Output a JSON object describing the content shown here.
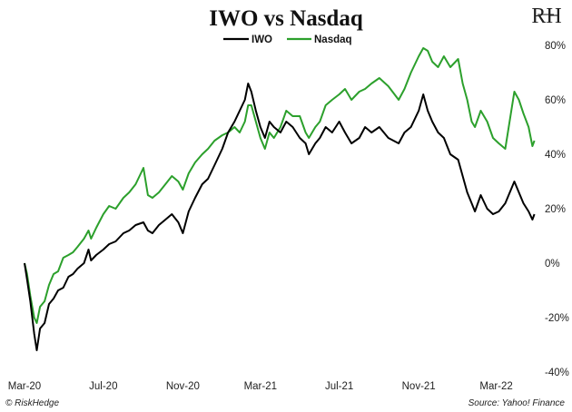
{
  "chart_data": {
    "type": "line",
    "title": "IWO vs Nasdaq",
    "y_axis_side": "right",
    "ylim": [
      -40,
      80
    ],
    "yticks": [
      80,
      60,
      40,
      20,
      0,
      -20,
      -40
    ],
    "ytick_labels": [
      "80%",
      "60%",
      "40%",
      "20%",
      "0%",
      "-20%",
      "-40%"
    ],
    "xlim": [
      "2020-03-01",
      "2022-05-01"
    ],
    "xticks": [
      "2020-03-01",
      "2020-07-01",
      "2020-11-01",
      "2021-03-01",
      "2021-07-01",
      "2021-11-01",
      "2022-03-01"
    ],
    "xtick_labels": [
      "Mar-20",
      "Jul-20",
      "Nov-20",
      "Mar-21",
      "Jul-21",
      "Nov-21",
      "Mar-22"
    ],
    "grid": false,
    "legend_position": "top-center",
    "series": [
      {
        "name": "IWO",
        "color": "#000000",
        "points": [
          [
            "2020-03-01",
            0
          ],
          [
            "2020-03-05",
            -6
          ],
          [
            "2020-03-10",
            -14
          ],
          [
            "2020-03-16",
            -26
          ],
          [
            "2020-03-20",
            -32
          ],
          [
            "2020-03-25",
            -24
          ],
          [
            "2020-04-01",
            -22
          ],
          [
            "2020-04-08",
            -15
          ],
          [
            "2020-04-15",
            -13
          ],
          [
            "2020-04-22",
            -10
          ],
          [
            "2020-04-30",
            -9
          ],
          [
            "2020-05-08",
            -5
          ],
          [
            "2020-05-15",
            -4
          ],
          [
            "2020-05-22",
            -2
          ],
          [
            "2020-06-01",
            0
          ],
          [
            "2020-06-08",
            5
          ],
          [
            "2020-06-12",
            1
          ],
          [
            "2020-06-20",
            3
          ],
          [
            "2020-07-01",
            5
          ],
          [
            "2020-07-10",
            7
          ],
          [
            "2020-07-20",
            8
          ],
          [
            "2020-08-01",
            11
          ],
          [
            "2020-08-10",
            12
          ],
          [
            "2020-08-20",
            14
          ],
          [
            "2020-09-01",
            15
          ],
          [
            "2020-09-08",
            12
          ],
          [
            "2020-09-15",
            11
          ],
          [
            "2020-09-25",
            14
          ],
          [
            "2020-10-05",
            16
          ],
          [
            "2020-10-15",
            18
          ],
          [
            "2020-10-25",
            15
          ],
          [
            "2020-11-01",
            11
          ],
          [
            "2020-11-10",
            19
          ],
          [
            "2020-11-20",
            24
          ],
          [
            "2020-12-01",
            29
          ],
          [
            "2020-12-10",
            31
          ],
          [
            "2020-12-20",
            36
          ],
          [
            "2021-01-01",
            42
          ],
          [
            "2021-01-10",
            48
          ],
          [
            "2021-01-20",
            52
          ],
          [
            "2021-01-28",
            56
          ],
          [
            "2021-02-05",
            60
          ],
          [
            "2021-02-10",
            66
          ],
          [
            "2021-02-15",
            63
          ],
          [
            "2021-02-22",
            56
          ],
          [
            "2021-03-01",
            50
          ],
          [
            "2021-03-08",
            46
          ],
          [
            "2021-03-15",
            52
          ],
          [
            "2021-03-22",
            50
          ],
          [
            "2021-04-01",
            48
          ],
          [
            "2021-04-10",
            52
          ],
          [
            "2021-04-20",
            50
          ],
          [
            "2021-05-01",
            46
          ],
          [
            "2021-05-10",
            44
          ],
          [
            "2021-05-15",
            40
          ],
          [
            "2021-05-25",
            44
          ],
          [
            "2021-06-01",
            46
          ],
          [
            "2021-06-10",
            50
          ],
          [
            "2021-06-20",
            48
          ],
          [
            "2021-07-01",
            52
          ],
          [
            "2021-07-10",
            48
          ],
          [
            "2021-07-20",
            44
          ],
          [
            "2021-08-01",
            46
          ],
          [
            "2021-08-10",
            50
          ],
          [
            "2021-08-20",
            48
          ],
          [
            "2021-09-01",
            50
          ],
          [
            "2021-09-15",
            46
          ],
          [
            "2021-10-01",
            44
          ],
          [
            "2021-10-10",
            48
          ],
          [
            "2021-10-20",
            50
          ],
          [
            "2021-11-01",
            56
          ],
          [
            "2021-11-08",
            62
          ],
          [
            "2021-11-15",
            56
          ],
          [
            "2021-11-22",
            52
          ],
          [
            "2021-12-01",
            48
          ],
          [
            "2021-12-10",
            46
          ],
          [
            "2021-12-20",
            40
          ],
          [
            "2022-01-01",
            38
          ],
          [
            "2022-01-08",
            32
          ],
          [
            "2022-01-15",
            26
          ],
          [
            "2022-01-22",
            22
          ],
          [
            "2022-01-27",
            19
          ],
          [
            "2022-02-05",
            25
          ],
          [
            "2022-02-15",
            20
          ],
          [
            "2022-02-24",
            18
          ],
          [
            "2022-03-05",
            19
          ],
          [
            "2022-03-15",
            22
          ],
          [
            "2022-03-29",
            30
          ],
          [
            "2022-04-05",
            26
          ],
          [
            "2022-04-12",
            22
          ],
          [
            "2022-04-20",
            19
          ],
          [
            "2022-04-26",
            16
          ],
          [
            "2022-04-29",
            18
          ]
        ]
      },
      {
        "name": "Nasdaq",
        "color": "#2ca02c",
        "points": [
          [
            "2020-03-01",
            0
          ],
          [
            "2020-03-05",
            -4
          ],
          [
            "2020-03-10",
            -12
          ],
          [
            "2020-03-16",
            -20
          ],
          [
            "2020-03-20",
            -22
          ],
          [
            "2020-03-25",
            -16
          ],
          [
            "2020-04-01",
            -14
          ],
          [
            "2020-04-08",
            -8
          ],
          [
            "2020-04-15",
            -4
          ],
          [
            "2020-04-22",
            -3
          ],
          [
            "2020-04-30",
            2
          ],
          [
            "2020-05-08",
            3
          ],
          [
            "2020-05-15",
            4
          ],
          [
            "2020-05-22",
            6
          ],
          [
            "2020-06-01",
            9
          ],
          [
            "2020-06-08",
            12
          ],
          [
            "2020-06-12",
            9
          ],
          [
            "2020-06-20",
            13
          ],
          [
            "2020-07-01",
            18
          ],
          [
            "2020-07-10",
            21
          ],
          [
            "2020-07-20",
            20
          ],
          [
            "2020-08-01",
            24
          ],
          [
            "2020-08-10",
            26
          ],
          [
            "2020-08-20",
            29
          ],
          [
            "2020-09-01",
            35
          ],
          [
            "2020-09-08",
            25
          ],
          [
            "2020-09-15",
            24
          ],
          [
            "2020-09-25",
            26
          ],
          [
            "2020-10-05",
            29
          ],
          [
            "2020-10-15",
            32
          ],
          [
            "2020-10-25",
            30
          ],
          [
            "2020-11-01",
            27
          ],
          [
            "2020-11-10",
            33
          ],
          [
            "2020-11-20",
            37
          ],
          [
            "2020-12-01",
            40
          ],
          [
            "2020-12-10",
            42
          ],
          [
            "2020-12-20",
            45
          ],
          [
            "2021-01-01",
            47
          ],
          [
            "2021-01-10",
            48
          ],
          [
            "2021-01-20",
            50
          ],
          [
            "2021-01-28",
            48
          ],
          [
            "2021-02-05",
            52
          ],
          [
            "2021-02-10",
            58
          ],
          [
            "2021-02-15",
            58
          ],
          [
            "2021-02-22",
            52
          ],
          [
            "2021-03-01",
            46
          ],
          [
            "2021-03-08",
            42
          ],
          [
            "2021-03-15",
            48
          ],
          [
            "2021-03-22",
            46
          ],
          [
            "2021-04-01",
            50
          ],
          [
            "2021-04-10",
            56
          ],
          [
            "2021-04-20",
            54
          ],
          [
            "2021-05-01",
            54
          ],
          [
            "2021-05-10",
            48
          ],
          [
            "2021-05-15",
            46
          ],
          [
            "2021-05-25",
            50
          ],
          [
            "2021-06-01",
            52
          ],
          [
            "2021-06-10",
            58
          ],
          [
            "2021-06-20",
            60
          ],
          [
            "2021-07-01",
            62
          ],
          [
            "2021-07-10",
            64
          ],
          [
            "2021-07-20",
            60
          ],
          [
            "2021-08-01",
            63
          ],
          [
            "2021-08-10",
            64
          ],
          [
            "2021-08-20",
            66
          ],
          [
            "2021-09-01",
            68
          ],
          [
            "2021-09-15",
            65
          ],
          [
            "2021-10-01",
            60
          ],
          [
            "2021-10-10",
            64
          ],
          [
            "2021-10-20",
            70
          ],
          [
            "2021-11-01",
            76
          ],
          [
            "2021-11-08",
            79
          ],
          [
            "2021-11-15",
            78
          ],
          [
            "2021-11-22",
            74
          ],
          [
            "2021-12-01",
            72
          ],
          [
            "2021-12-10",
            76
          ],
          [
            "2021-12-20",
            72
          ],
          [
            "2022-01-01",
            75
          ],
          [
            "2022-01-08",
            66
          ],
          [
            "2022-01-15",
            60
          ],
          [
            "2022-01-22",
            52
          ],
          [
            "2022-01-27",
            50
          ],
          [
            "2022-02-05",
            56
          ],
          [
            "2022-02-15",
            52
          ],
          [
            "2022-02-24",
            46
          ],
          [
            "2022-03-05",
            44
          ],
          [
            "2022-03-15",
            42
          ],
          [
            "2022-03-29",
            63
          ],
          [
            "2022-04-05",
            60
          ],
          [
            "2022-04-12",
            55
          ],
          [
            "2022-04-20",
            50
          ],
          [
            "2022-04-26",
            43
          ],
          [
            "2022-04-29",
            45
          ]
        ]
      }
    ]
  },
  "logo_text": "RH",
  "copyright": "© RiskHedge",
  "source": "Source: Yahoo! Finance"
}
